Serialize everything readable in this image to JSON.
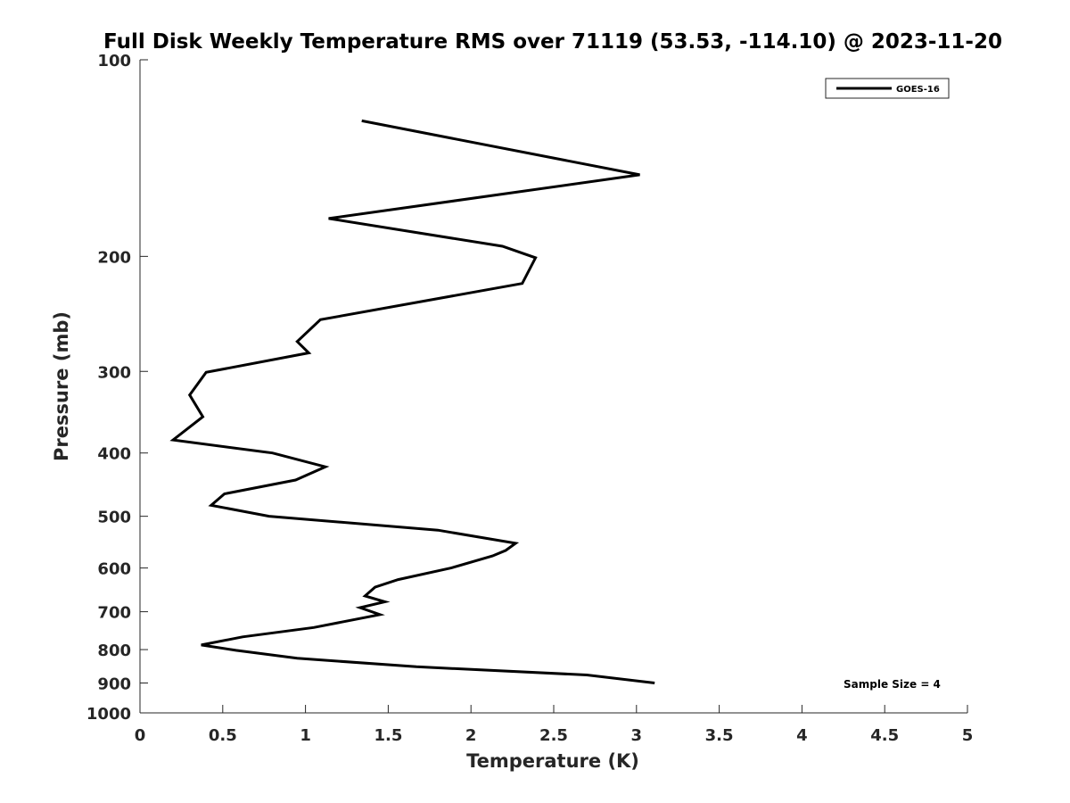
{
  "chart_data": {
    "type": "line",
    "title": "Full Disk Weekly Temperature RMS over 71119 (53.53, -114.10) @ 2023-11-20",
    "xlabel": "Temperature (K)",
    "ylabel": "Pressure (mb)",
    "xlim": [
      0,
      5
    ],
    "ylim": [
      100,
      1000
    ],
    "y_scale": "log",
    "y_reversed": true,
    "x_ticks": [
      0,
      0.5,
      1,
      1.5,
      2,
      2.5,
      3,
      3.5,
      4,
      4.5,
      5
    ],
    "x_tick_labels": [
      "0",
      "0.5",
      "1",
      "1.5",
      "2",
      "2.5",
      "3",
      "3.5",
      "4",
      "4.5",
      "5"
    ],
    "y_ticks": [
      100,
      200,
      300,
      400,
      500,
      600,
      700,
      800,
      900,
      1000
    ],
    "y_tick_labels": [
      "100",
      "200",
      "300",
      "400",
      "500",
      "600",
      "700",
      "800",
      "900",
      "1000"
    ],
    "grid": false,
    "legend_position": "top-right",
    "annotation": "Sample Size = 4",
    "series": [
      {
        "name": "GOES-16",
        "color": "#000000",
        "points": [
          [
            1.34,
            124
          ],
          [
            3.02,
            150
          ],
          [
            1.14,
            175
          ],
          [
            2.19,
            193
          ],
          [
            2.39,
            201
          ],
          [
            2.31,
            220
          ],
          [
            1.09,
            250
          ],
          [
            0.95,
            270
          ],
          [
            1.02,
            281
          ],
          [
            0.4,
            301
          ],
          [
            0.3,
            326
          ],
          [
            0.38,
            352
          ],
          [
            0.2,
            382
          ],
          [
            0.8,
            400
          ],
          [
            1.12,
            420
          ],
          [
            0.94,
            440
          ],
          [
            0.51,
            462
          ],
          [
            0.43,
            481
          ],
          [
            0.78,
            500
          ],
          [
            1.8,
            525
          ],
          [
            2.27,
            550
          ],
          [
            2.21,
            564
          ],
          [
            2.13,
            575
          ],
          [
            1.88,
            600
          ],
          [
            1.56,
            625
          ],
          [
            1.42,
            642
          ],
          [
            1.36,
            662
          ],
          [
            1.48,
            676
          ],
          [
            1.33,
            690
          ],
          [
            1.45,
            707
          ],
          [
            1.05,
            740
          ],
          [
            0.62,
            765
          ],
          [
            0.37,
            787
          ],
          [
            0.58,
            802
          ],
          [
            0.95,
            825
          ],
          [
            1.67,
            850
          ],
          [
            2.7,
            875
          ],
          [
            3.11,
            900
          ]
        ]
      }
    ]
  }
}
